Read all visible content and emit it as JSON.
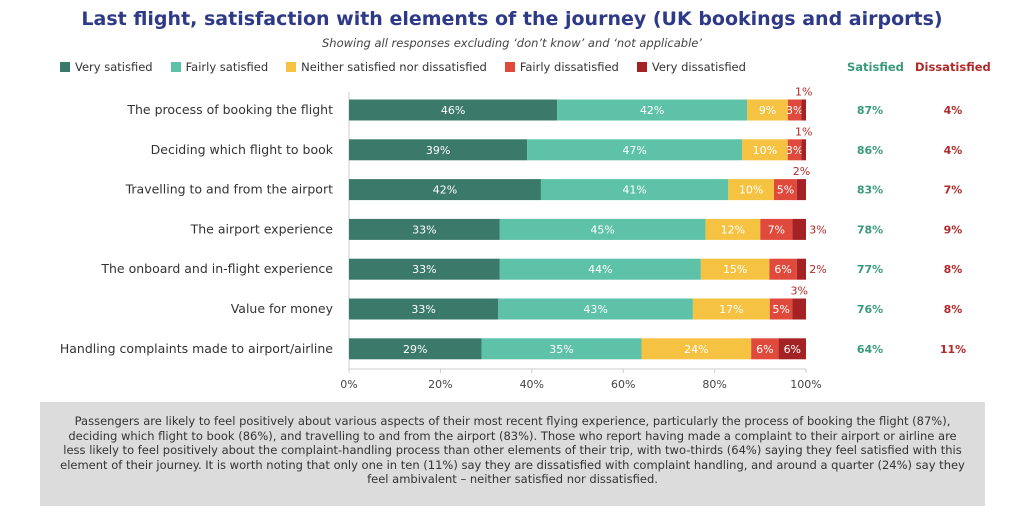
{
  "chart_data": {
    "type": "bar",
    "orientation": "horizontal-stacked-100",
    "title": "Last flight, satisfaction with elements of the journey (UK bookings and airports)",
    "subtitle": "Showing all responses excluding ‘don’t know’ and ‘not applicable’",
    "categories": [
      "The process of booking the flight",
      "Deciding which flight to book",
      "Travelling to and from the airport",
      "The airport experience",
      "The onboard and in-flight experience",
      "Value for money",
      "Handling complaints made to airport/airline"
    ],
    "series": [
      {
        "name": "Very satisfied",
        "color": "#3b7a6a",
        "values": [
          46,
          39,
          42,
          33,
          33,
          33,
          29
        ]
      },
      {
        "name": "Fairly satisfied",
        "color": "#5ec2a8",
        "values": [
          42,
          47,
          41,
          45,
          44,
          43,
          35
        ]
      },
      {
        "name": "Neither satisfied nor dissatisfied",
        "color": "#f5c242",
        "values": [
          9,
          10,
          10,
          12,
          15,
          17,
          24
        ]
      },
      {
        "name": "Fairly dissatisfied",
        "color": "#e04a3c",
        "values": [
          3,
          3,
          5,
          7,
          6,
          5,
          6
        ]
      },
      {
        "name": "Very dissatisfied",
        "color": "#a52224",
        "values": [
          1,
          1,
          2,
          3,
          2,
          3,
          6
        ]
      }
    ],
    "satisfied_header": "Satisfied",
    "satisfied_color": "#3a9a7c",
    "satisfied": [
      "87%",
      "86%",
      "83%",
      "78%",
      "77%",
      "76%",
      "64%"
    ],
    "dissatisfied_header": "Dissatisfied",
    "dissatisfied_color": "#b02a2a",
    "dissatisfied": [
      "4%",
      "4%",
      "7%",
      "9%",
      "8%",
      "8%",
      "11%"
    ],
    "xticks": [
      "0%",
      "20%",
      "40%",
      "60%",
      "80%",
      "100%"
    ],
    "xlim": [
      0,
      100
    ],
    "legend": "top"
  },
  "summary": "Passengers are likely to feel positively about various aspects of their most recent flying experience, particularly the process of booking the flight (87%), deciding which flight to book (86%), and travelling to and from the airport (83%). Those who report having made a complaint to their airport or airline are less likely to feel positively about the complaint-handling process than other elements of their trip, with two-thirds (64%) saying they feel satisfied with this element of their journey. It is worth noting that only one in ten (11%) say they are dissatisfied with complaint handling, and around a quarter (24%) say they feel ambivalent – neither satisfied nor dissatisfied."
}
